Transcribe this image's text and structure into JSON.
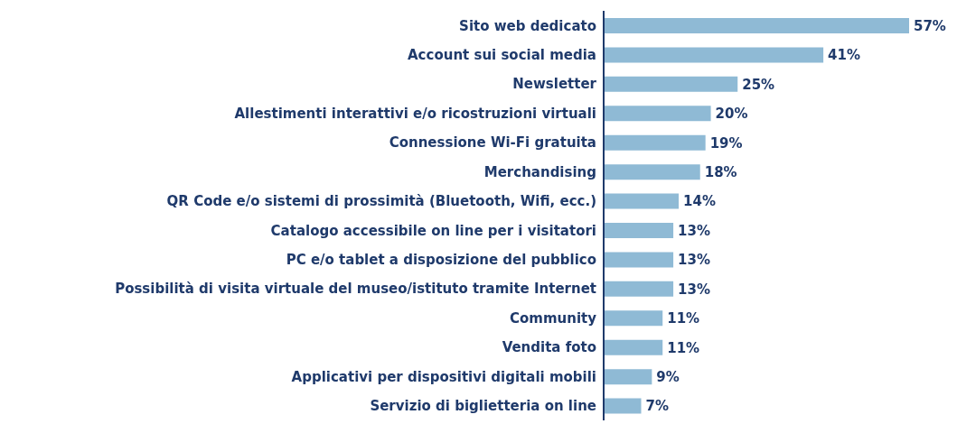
{
  "chart_data": {
    "type": "bar",
    "orientation": "horizontal",
    "categories": [
      "Sito web dedicato",
      "Account sui social media",
      "Newsletter",
      "Allestimenti interattivi e/o ricostruzioni virtuali",
      "Connessione Wi-Fi gratuita",
      "Merchandising",
      "QR Code e/o sistemi di prossimità (Bluetooth, Wifi, ecc.)",
      "Catalogo accessibile on line per i visitatori",
      "PC e/o tablet a disposizione del pubblico",
      "Possibilità di visita virtuale del museo/istituto tramite Internet",
      "Community",
      "Vendita foto",
      "Applicativi per dispositivi digitali mobili",
      "Servizio di biglietteria on line"
    ],
    "values": [
      57,
      41,
      25,
      20,
      19,
      18,
      14,
      13,
      13,
      13,
      11,
      11,
      9,
      7
    ],
    "value_labels": [
      "57%",
      "41%",
      "25%",
      "20%",
      "19%",
      "18%",
      "14%",
      "13%",
      "13%",
      "13%",
      "11%",
      "11%",
      "9%",
      "7%"
    ],
    "color": "#8fbad5"
  }
}
